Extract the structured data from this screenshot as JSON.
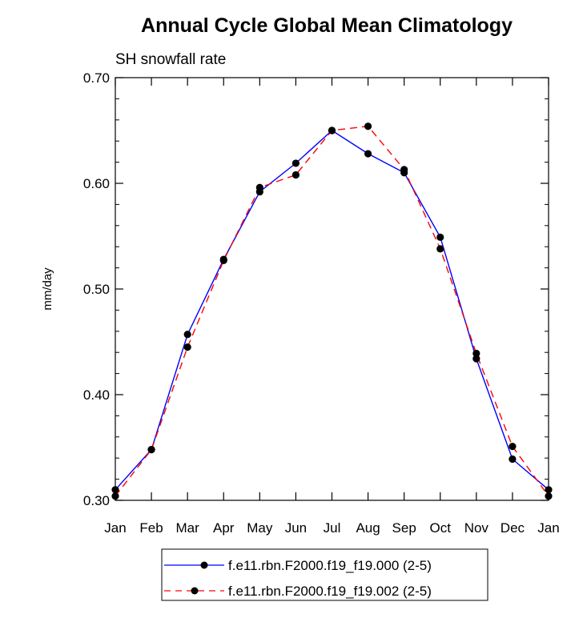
{
  "chart_data": {
    "type": "line",
    "title": "Annual Cycle Global Mean Climatology",
    "subtitle": "SH snowfall rate",
    "xlabel": "",
    "ylabel": "mm/day",
    "categories": [
      "Jan",
      "Feb",
      "Mar",
      "Apr",
      "May",
      "Jun",
      "Jul",
      "Aug",
      "Sep",
      "Oct",
      "Nov",
      "Dec",
      "Jan"
    ],
    "ylim": [
      0.3,
      0.7
    ],
    "yticks": [
      "0.30",
      "0.40",
      "0.50",
      "0.60",
      "0.70"
    ],
    "yticks_values": [
      0.3,
      0.4,
      0.5,
      0.6,
      0.7
    ],
    "series": [
      {
        "name": "f.e11.rbn.F2000.f19_f19.000 (2-5)",
        "color": "#0000ff",
        "dash": "solid",
        "values": [
          0.31,
          0.348,
          0.457,
          0.528,
          0.592,
          0.619,
          0.65,
          0.628,
          0.61,
          0.549,
          0.434,
          0.339,
          0.31
        ]
      },
      {
        "name": "f.e11.rbn.F2000.f19_f19.002 (2-5)",
        "color": "#ff0000",
        "dash": "dashed",
        "values": [
          0.304,
          0.348,
          0.445,
          0.527,
          0.596,
          0.608,
          0.65,
          0.654,
          0.613,
          0.538,
          0.439,
          0.351,
          0.304
        ]
      }
    ]
  }
}
